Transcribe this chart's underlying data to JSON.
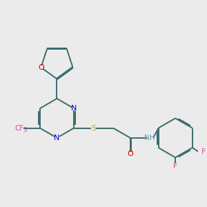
{
  "background_color": "#ebebeb",
  "bond_color": "#3a6b6b",
  "atom_colors": {
    "O": "#cc0000",
    "N": "#0000dd",
    "S": "#bbaa00",
    "F": "#dd44aa",
    "H": "#6699aa",
    "C": "#3a6b6b"
  },
  "lw": 1.4,
  "dbo": 0.055
}
